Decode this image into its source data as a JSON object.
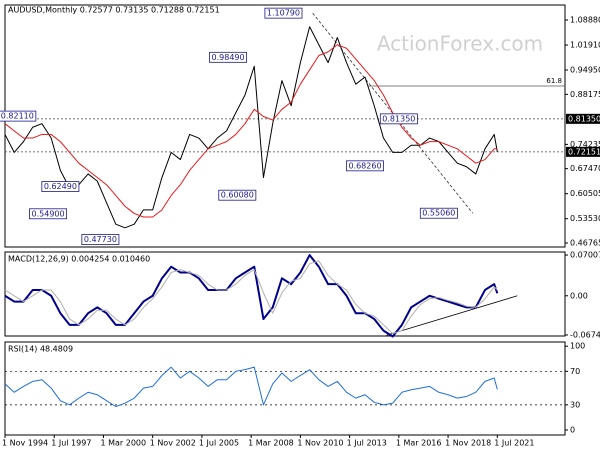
{
  "chart_data": {
    "type": "line",
    "title": "AUDUSD,Monthly  0.72577 0.73135 0.71288 0.72151",
    "watermark": "ActionForex.com",
    "xlim": [
      "1 Nov 1994",
      "1 Mar 2025"
    ],
    "xticks": [
      "1 Nov 1994",
      "1 Jul 1997",
      "1 Mar 2000",
      "1 Nov 2002",
      "1 Jul 2005",
      "1 Mar 2008",
      "1 Nov 2010",
      "1 Jul 2013",
      "1 Mar 2016",
      "1 Nov 2018",
      "1 Jul 2021"
    ],
    "x": [
      "1 Nov 1994",
      "1 May 1995",
      "1 Nov 1995",
      "1 May 1996",
      "1 Nov 1996",
      "1 May 1997",
      "1 Nov 1997",
      "1 May 1998",
      "1 Nov 1998",
      "1 May 1999",
      "1 Nov 1999",
      "1 May 2000",
      "1 Nov 2000",
      "1 May 2001",
      "1 Nov 2001",
      "1 May 2002",
      "1 Nov 2002",
      "1 May 2003",
      "1 Nov 2003",
      "1 May 2004",
      "1 Nov 2004",
      "1 May 2005",
      "1 Nov 2005",
      "1 May 2006",
      "1 Nov 2006",
      "1 May 2007",
      "1 Nov 2007",
      "1 May 2008",
      "1 Nov 2008",
      "1 May 2009",
      "1 Nov 2009",
      "1 May 2010",
      "1 Nov 2010",
      "1 May 2011",
      "1 Nov 2011",
      "1 May 2012",
      "1 Nov 2012",
      "1 May 2013",
      "1 Nov 2013",
      "1 May 2014",
      "1 Nov 2014",
      "1 May 2015",
      "1 Nov 2015",
      "1 May 2016",
      "1 Nov 2016",
      "1 May 2017",
      "1 Nov 2017",
      "1 May 2018",
      "1 Nov 2018",
      "1 May 2019",
      "1 Nov 2019",
      "1 May 2020",
      "1 Nov 2020",
      "1 May 2021",
      "1 Jul 2021"
    ],
    "panels": [
      {
        "ylim": [
          0.4565,
          1.1306
        ],
        "yticks": [
          {
            "value": 1.0888,
            "label": "1.08880"
          },
          {
            "value": 1.0191,
            "label": "1.01910"
          },
          {
            "value": 0.9495,
            "label": "0.94950"
          },
          0.88175,
          0.74235,
          {
            "value": 0.6747,
            "label": "0.67470"
          },
          0.60505,
          {
            "value": 0.5353,
            "label": "0.53530"
          },
          0.46765
        ],
        "hlines": [
          {
            "value": 0.8135,
            "label": "0.81350"
          },
          0.72151
        ],
        "series": [
          {
            "color": "#000000",
            "width": 1,
            "values": [
              0.77,
              0.72,
              0.75,
              0.79,
              0.8,
              0.76,
              0.67,
              0.62,
              0.63,
              0.66,
              0.64,
              0.58,
              0.52,
              0.51,
              0.52,
              0.56,
              0.56,
              0.65,
              0.72,
              0.7,
              0.77,
              0.76,
              0.73,
              0.76,
              0.78,
              0.83,
              0.88,
              0.96,
              0.65,
              0.8,
              0.92,
              0.85,
              0.97,
              1.07,
              1.02,
              0.97,
              1.04,
              0.97,
              0.91,
              0.93,
              0.85,
              0.76,
              0.72,
              0.72,
              0.74,
              0.74,
              0.76,
              0.75,
              0.72,
              0.69,
              0.68,
              0.66,
              0.73,
              0.77,
              0.72151
            ]
          },
          {
            "color": "#e8191b",
            "width": 1,
            "values": [
              0.8,
              0.78,
              0.76,
              0.76,
              0.77,
              0.77,
              0.75,
              0.72,
              0.69,
              0.67,
              0.65,
              0.63,
              0.6,
              0.57,
              0.55,
              0.54,
              0.54,
              0.56,
              0.6,
              0.63,
              0.67,
              0.7,
              0.73,
              0.74,
              0.75,
              0.77,
              0.8,
              0.84,
              0.82,
              0.81,
              0.84,
              0.86,
              0.91,
              0.95,
              0.99,
              1.0,
              1.02,
              1.01,
              0.98,
              0.95,
              0.92,
              0.88,
              0.83,
              0.79,
              0.76,
              0.74,
              0.75,
              0.75,
              0.74,
              0.73,
              0.71,
              0.69,
              0.7,
              0.73,
              0.73
            ]
          }
        ],
        "labels": [
          {
            "value": 1.1079,
            "label": "1.10790",
            "x": "1 Dec 2009"
          },
          {
            "value": 0.9849,
            "label": "0.98490",
            "x": "1 Dec 2006"
          },
          {
            "value": 0.8211,
            "label": "0.82110",
            "x": "1 Jul 1995"
          },
          {
            "value": 0.8135,
            "label": "0.81350",
            "x": "1 Mar 2016"
          },
          {
            "value": 0.6826,
            "label": "0.68260",
            "x": "1 May 2014"
          },
          {
            "value": 0.6249,
            "label": "0.62490",
            "x": "1 Nov 1997"
          },
          {
            "value": 0.6008,
            "label": "0.60080",
            "x": "1 Jun 2007"
          },
          {
            "value": 0.549,
            "label": "0.54900",
            "x": "1 Mar 1997"
          },
          {
            "value": 0.5506,
            "label": "0.55060",
            "x": "1 May 2018"
          },
          {
            "value": 0.4773,
            "label": "0.47730",
            "x": "1 Jan 2000"
          }
        ],
        "fib": {
          "label": "61.8",
          "value": 0.905,
          "x": "1 Jul 2014"
        },
        "trendlines": [
          {
            "x": [
              "1 Jul 2011",
              "1 Mar 2020"
            ],
            "values": [
              1.1079,
              0.5506
            ]
          }
        ]
      },
      {
        "title": "MACD(12,26,9) 0.004254 0.010460",
        "ylim": [
          -0.0692,
          0.0753
        ],
        "yticks": [
          0.070071,
          {
            "value": 0,
            "label": "0.00"
          },
          -0.067423
        ],
        "series": [
          {
            "color": "#00008b",
            "width": 2,
            "values": [
              0.0,
              -0.01,
              -0.01,
              0.01,
              0.01,
              0.0,
              -0.03,
              -0.05,
              -0.05,
              -0.03,
              -0.02,
              -0.03,
              -0.05,
              -0.05,
              -0.03,
              -0.01,
              0.0,
              0.03,
              0.05,
              0.04,
              0.04,
              0.03,
              0.01,
              0.01,
              0.01,
              0.03,
              0.04,
              0.05,
              -0.04,
              -0.02,
              0.03,
              0.02,
              0.04,
              0.07,
              0.05,
              0.02,
              0.02,
              0.0,
              -0.03,
              -0.03,
              -0.04,
              -0.06,
              -0.07,
              -0.05,
              -0.02,
              -0.01,
              0.0,
              -0.005,
              -0.01,
              -0.015,
              -0.02,
              -0.02,
              0.01,
              0.02,
              0.004254
            ]
          },
          {
            "color": "#b0b0b0",
            "width": 1,
            "values": [
              0.01,
              0.0,
              -0.01,
              0.0,
              0.01,
              0.01,
              -0.01,
              -0.04,
              -0.05,
              -0.04,
              -0.025,
              -0.025,
              -0.04,
              -0.05,
              -0.04,
              -0.02,
              -0.005,
              0.015,
              0.04,
              0.045,
              0.04,
              0.035,
              0.02,
              0.01,
              0.01,
              0.02,
              0.035,
              0.045,
              0.005,
              -0.03,
              0.005,
              0.025,
              0.03,
              0.055,
              0.06,
              0.035,
              0.02,
              0.01,
              -0.015,
              -0.03,
              -0.035,
              -0.05,
              -0.065,
              -0.06,
              -0.035,
              -0.015,
              -0.005,
              -0.003,
              -0.008,
              -0.012,
              -0.018,
              -0.02,
              -0.005,
              0.015,
              0.01046
            ]
          }
        ],
        "trendlines": [
          {
            "x": [
              "1 Jul 2015",
              "1 Aug 2022"
            ],
            "values": [
              -0.068,
              0.0
            ]
          }
        ]
      },
      {
        "title": "RSI(14) 48.4809",
        "ylim": [
          -6,
          105
        ],
        "yticks": [
          100,
          70,
          30,
          0
        ],
        "grid": true,
        "series": [
          {
            "color": "#1e6fe0",
            "width": 1,
            "values": [
              55,
              45,
              52,
              58,
              60,
              50,
              35,
              30,
              38,
              45,
              42,
              35,
              28,
              32,
              38,
              50,
              52,
              65,
              75,
              62,
              70,
              62,
              52,
              60,
              60,
              70,
              72,
              75,
              30,
              55,
              68,
              58,
              65,
              72,
              60,
              52,
              58,
              45,
              38,
              42,
              33,
              30,
              32,
              45,
              48,
              50,
              52,
              45,
              42,
              38,
              40,
              45,
              58,
              62,
              48.4809
            ]
          }
        ]
      }
    ]
  }
}
